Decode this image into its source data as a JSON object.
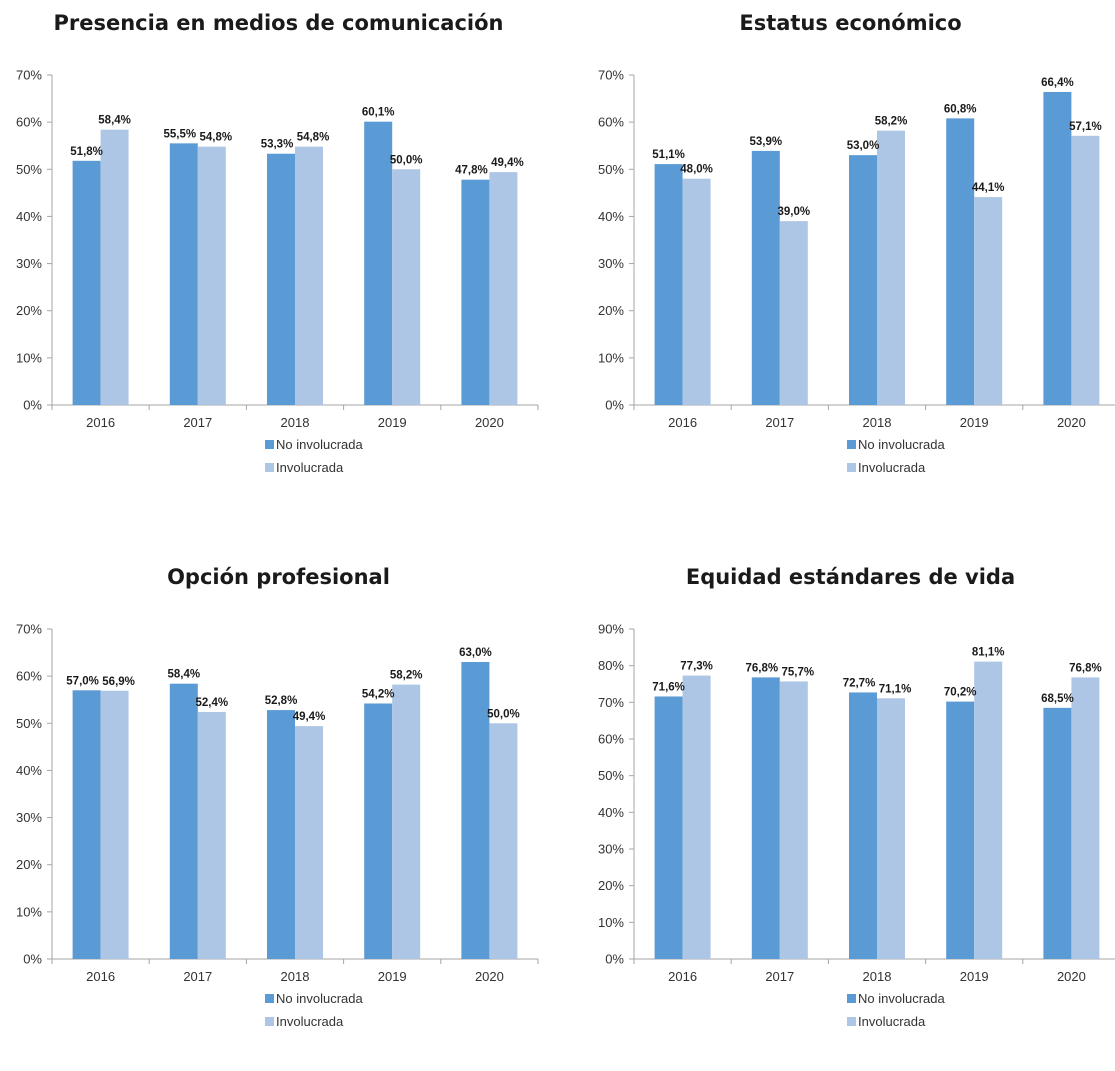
{
  "colors": {
    "no_involucrada": "#5b9bd5",
    "involucrada": "#adc6e5",
    "axis": "#a6a6a6"
  },
  "chart_data": [
    {
      "type": "bar",
      "title": "Presencia en medios de comunicación",
      "categories": [
        "2016",
        "2017",
        "2018",
        "2019",
        "2020"
      ],
      "series": [
        {
          "name": "No involucrada",
          "values": [
            51.8,
            55.5,
            53.3,
            60.1,
            47.8
          ],
          "labels": [
            "51,8%",
            "55,5%",
            "53,3%",
            "60,1%",
            "47,8%"
          ]
        },
        {
          "name": "Involucrada",
          "values": [
            58.4,
            54.8,
            54.8,
            50.0,
            49.4
          ],
          "labels": [
            "58,4%",
            "54,8%",
            "54,8%",
            "50,0%",
            "49,4%"
          ]
        }
      ],
      "ylim": [
        0,
        70
      ],
      "yticks": [
        "0%",
        "10%",
        "20%",
        "30%",
        "40%",
        "50%",
        "60%",
        "70%"
      ],
      "legend": "bottom"
    },
    {
      "type": "bar",
      "title": "Estatus económico",
      "categories": [
        "2016",
        "2017",
        "2018",
        "2019",
        "2020"
      ],
      "series": [
        {
          "name": "No involucrada",
          "values": [
            51.1,
            53.9,
            53.0,
            60.8,
            66.4
          ],
          "labels": [
            "51,1%",
            "53,9%",
            "53,0%",
            "60,8%",
            "66,4%"
          ]
        },
        {
          "name": "Involucrada",
          "values": [
            48.0,
            39.0,
            58.2,
            44.1,
            57.1
          ],
          "labels": [
            "48,0%",
            "39,0%",
            "58,2%",
            "44,1%",
            "57,1%"
          ]
        }
      ],
      "ylim": [
        0,
        70
      ],
      "yticks": [
        "0%",
        "10%",
        "20%",
        "30%",
        "40%",
        "50%",
        "60%",
        "70%"
      ],
      "legend": "bottom"
    },
    {
      "type": "bar",
      "title": "Opción profesional",
      "categories": [
        "2016",
        "2017",
        "2018",
        "2019",
        "2020"
      ],
      "series": [
        {
          "name": "No involucrada",
          "values": [
            57.0,
            58.4,
            52.8,
            54.2,
            63.0
          ],
          "labels": [
            "57,0%",
            "58,4%",
            "52,8%",
            "54,2%",
            "63,0%"
          ]
        },
        {
          "name": "Involucrada",
          "values": [
            56.9,
            52.4,
            49.4,
            58.2,
            50.0
          ],
          "labels": [
            "56,9%",
            "52,4%",
            "49,4%",
            "58,2%",
            "50,0%"
          ]
        }
      ],
      "ylim": [
        0,
        70
      ],
      "yticks": [
        "0%",
        "10%",
        "20%",
        "30%",
        "40%",
        "50%",
        "60%",
        "70%"
      ],
      "legend": "bottom"
    },
    {
      "type": "bar",
      "title": "Equidad estándares de vida",
      "categories": [
        "2016",
        "2017",
        "2018",
        "2019",
        "2020"
      ],
      "series": [
        {
          "name": "No involucrada",
          "values": [
            71.6,
            76.8,
            72.7,
            70.2,
            68.5
          ],
          "labels": [
            "71,6%",
            "76,8%",
            "72,7%",
            "70,2%",
            "68,5%"
          ]
        },
        {
          "name": "Involucrada",
          "values": [
            77.3,
            75.7,
            71.1,
            81.1,
            76.8
          ],
          "labels": [
            "77,3%",
            "75,7%",
            "71,1%",
            "81,1%",
            "76,8%"
          ]
        }
      ],
      "ylim": [
        0,
        90
      ],
      "yticks": [
        "0%",
        "10%",
        "20%",
        "30%",
        "40%",
        "50%",
        "60%",
        "70%",
        "80%",
        "90%"
      ],
      "legend": "bottom"
    }
  ]
}
